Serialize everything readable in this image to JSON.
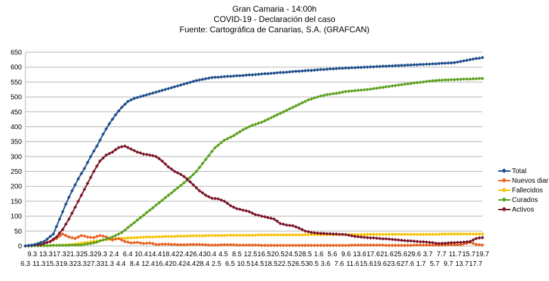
{
  "chart_data": {
    "type": "line",
    "title": "Gran Camaria - 14:00h",
    "subtitle": "COVID-19 - Declaración del caso",
    "source": "Fuente: Cartográfica de Canarias, S.A. (GRAFCAN)",
    "xlabel": "",
    "ylabel": "",
    "ylim": [
      0,
      650
    ],
    "yticks": [
      0,
      50,
      100,
      150,
      200,
      250,
      300,
      350,
      400,
      450,
      500,
      550,
      600,
      650
    ],
    "grid": true,
    "legend_position": "right",
    "tick_labels_row1": [
      "9.3",
      "13.3",
      "17.3",
      "21.3",
      "25.3",
      "29.3",
      "2.4",
      "6.4",
      "10.4",
      "14.4",
      "18.4",
      "22.4",
      "26.4",
      "30.4",
      "4.5",
      "8.5",
      "12.5",
      "16.5",
      "20.5",
      "24.5",
      "28.5",
      "1.6",
      "5.6",
      "9.6",
      "13.6",
      "17.6",
      "21.6",
      "25.6",
      "29.6",
      "3.7",
      "7.7",
      "11.7",
      "15.7",
      "19.7"
    ],
    "tick_labels_row2": [
      "6.3",
      "11.3",
      "15.3",
      "19.3",
      "23.3",
      "27.3",
      "31.3",
      "4.4",
      "8.4",
      "12.4",
      "16.4",
      "20.4",
      "24.4",
      "28.4",
      "2.5",
      "6.5",
      "10.5",
      "14.5",
      "18.5",
      "22.5",
      "26.5",
      "30.5",
      "3.6",
      "7.6",
      "11.6",
      "15.6",
      "19.6",
      "23.6",
      "27.6",
      "1.7",
      "5.7",
      "9.7",
      "13.7",
      "17.7"
    ],
    "series": [
      {
        "name": "Total",
        "color": "#1f4e8c",
        "anchors": [
          [
            0,
            0
          ],
          [
            3,
            5
          ],
          [
            6,
            15
          ],
          [
            9,
            40
          ],
          [
            11,
            90
          ],
          [
            13,
            140
          ],
          [
            15,
            185
          ],
          [
            17,
            225
          ],
          [
            19,
            260
          ],
          [
            21,
            300
          ],
          [
            23,
            335
          ],
          [
            25,
            375
          ],
          [
            27,
            410
          ],
          [
            29,
            440
          ],
          [
            31,
            465
          ],
          [
            33,
            485
          ],
          [
            35,
            495
          ],
          [
            40,
            510
          ],
          [
            45,
            525
          ],
          [
            50,
            540
          ],
          [
            55,
            555
          ],
          [
            60,
            565
          ],
          [
            70,
            572
          ],
          [
            80,
            580
          ],
          [
            90,
            588
          ],
          [
            100,
            595
          ],
          [
            110,
            600
          ],
          [
            120,
            605
          ],
          [
            130,
            610
          ],
          [
            138,
            615
          ],
          [
            143,
            625
          ],
          [
            147,
            632
          ]
        ],
        "values": []
      },
      {
        "name": "Nuevos diario",
        "color": "#e8601c",
        "anchors": [
          [
            0,
            0
          ],
          [
            5,
            5
          ],
          [
            8,
            15
          ],
          [
            10,
            25
          ],
          [
            12,
            40
          ],
          [
            14,
            30
          ],
          [
            16,
            25
          ],
          [
            18,
            35
          ],
          [
            20,
            30
          ],
          [
            22,
            28
          ],
          [
            24,
            35
          ],
          [
            26,
            30
          ],
          [
            28,
            20
          ],
          [
            30,
            25
          ],
          [
            32,
            15
          ],
          [
            34,
            10
          ],
          [
            36,
            12
          ],
          [
            38,
            8
          ],
          [
            40,
            10
          ],
          [
            42,
            5
          ],
          [
            45,
            6
          ],
          [
            50,
            4
          ],
          [
            55,
            5
          ],
          [
            60,
            3
          ],
          [
            65,
            4
          ],
          [
            70,
            3
          ],
          [
            80,
            2
          ],
          [
            90,
            2
          ],
          [
            100,
            2
          ],
          [
            110,
            3
          ],
          [
            120,
            2
          ],
          [
            130,
            3
          ],
          [
            140,
            4
          ],
          [
            143,
            12
          ],
          [
            145,
            5
          ],
          [
            147,
            3
          ]
        ],
        "values": []
      },
      {
        "name": "Fallecidos",
        "color": "#f5c200",
        "anchors": [
          [
            0,
            0
          ],
          [
            10,
            2
          ],
          [
            15,
            5
          ],
          [
            20,
            12
          ],
          [
            25,
            20
          ],
          [
            30,
            25
          ],
          [
            35,
            28
          ],
          [
            40,
            30
          ],
          [
            50,
            33
          ],
          [
            60,
            35
          ],
          [
            80,
            37
          ],
          [
            100,
            38
          ],
          [
            120,
            39
          ],
          [
            147,
            40
          ]
        ],
        "values": []
      },
      {
        "name": "Curados",
        "color": "#5ba11e",
        "anchors": [
          [
            0,
            0
          ],
          [
            18,
            3
          ],
          [
            22,
            10
          ],
          [
            25,
            20
          ],
          [
            28,
            30
          ],
          [
            31,
            45
          ],
          [
            34,
            70
          ],
          [
            37,
            95
          ],
          [
            40,
            120
          ],
          [
            43,
            145
          ],
          [
            46,
            170
          ],
          [
            49,
            195
          ],
          [
            52,
            220
          ],
          [
            55,
            250
          ],
          [
            58,
            290
          ],
          [
            61,
            330
          ],
          [
            64,
            355
          ],
          [
            67,
            370
          ],
          [
            70,
            390
          ],
          [
            73,
            405
          ],
          [
            76,
            415
          ],
          [
            79,
            430
          ],
          [
            82,
            445
          ],
          [
            85,
            460
          ],
          [
            88,
            475
          ],
          [
            91,
            490
          ],
          [
            94,
            500
          ],
          [
            97,
            508
          ],
          [
            100,
            512
          ],
          [
            103,
            518
          ],
          [
            110,
            525
          ],
          [
            115,
            532
          ],
          [
            120,
            540
          ],
          [
            126,
            548
          ],
          [
            132,
            555
          ],
          [
            137,
            558
          ],
          [
            142,
            560
          ],
          [
            147,
            562
          ]
        ],
        "values": []
      },
      {
        "name": "Activos",
        "color": "#7b1728",
        "anchors": [
          [
            0,
            0
          ],
          [
            5,
            5
          ],
          [
            8,
            15
          ],
          [
            10,
            30
          ],
          [
            12,
            55
          ],
          [
            14,
            90
          ],
          [
            16,
            130
          ],
          [
            18,
            170
          ],
          [
            20,
            210
          ],
          [
            22,
            250
          ],
          [
            24,
            285
          ],
          [
            26,
            305
          ],
          [
            28,
            315
          ],
          [
            30,
            330
          ],
          [
            32,
            335
          ],
          [
            34,
            325
          ],
          [
            36,
            315
          ],
          [
            38,
            308
          ],
          [
            40,
            305
          ],
          [
            42,
            300
          ],
          [
            44,
            285
          ],
          [
            46,
            265
          ],
          [
            48,
            250
          ],
          [
            50,
            240
          ],
          [
            52,
            225
          ],
          [
            54,
            205
          ],
          [
            56,
            185
          ],
          [
            58,
            170
          ],
          [
            60,
            160
          ],
          [
            62,
            158
          ],
          [
            64,
            150
          ],
          [
            66,
            135
          ],
          [
            68,
            125
          ],
          [
            70,
            120
          ],
          [
            72,
            115
          ],
          [
            74,
            105
          ],
          [
            76,
            100
          ],
          [
            78,
            95
          ],
          [
            80,
            90
          ],
          [
            82,
            75
          ],
          [
            84,
            70
          ],
          [
            86,
            68
          ],
          [
            88,
            60
          ],
          [
            90,
            50
          ],
          [
            92,
            45
          ],
          [
            95,
            42
          ],
          [
            100,
            40
          ],
          [
            103,
            38
          ],
          [
            106,
            32
          ],
          [
            110,
            28
          ],
          [
            114,
            25
          ],
          [
            118,
            22
          ],
          [
            122,
            18
          ],
          [
            126,
            15
          ],
          [
            130,
            12
          ],
          [
            133,
            8
          ],
          [
            136,
            10
          ],
          [
            140,
            12
          ],
          [
            143,
            15
          ],
          [
            145,
            25
          ],
          [
            147,
            28
          ]
        ],
        "values": []
      }
    ]
  }
}
